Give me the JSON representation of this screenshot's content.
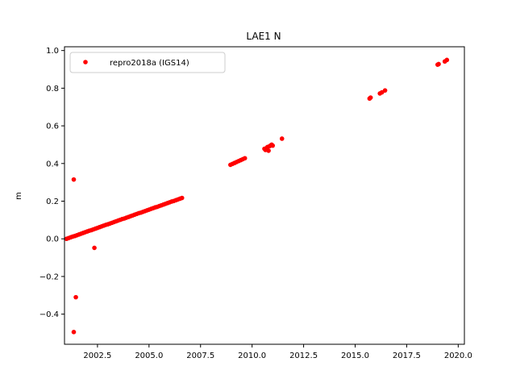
{
  "chart_data": {
    "type": "scatter",
    "title": "LAE1 N",
    "xlabel": "",
    "ylabel": "m",
    "xlim": [
      2000.9,
      2020.3
    ],
    "ylim": [
      -0.56,
      1.02
    ],
    "x_ticks": [
      2002.5,
      2005.0,
      2007.5,
      2010.0,
      2012.5,
      2015.0,
      2017.5,
      2020.0
    ],
    "x_tick_labels": [
      "2002.5",
      "2005.0",
      "2007.5",
      "2010.0",
      "2012.5",
      "2015.0",
      "2017.5",
      "2020.0"
    ],
    "y_ticks": [
      -0.4,
      -0.2,
      0.0,
      0.2,
      0.4,
      0.6,
      0.8,
      1.0
    ],
    "y_tick_labels": [
      "−0.4",
      "−0.2",
      "0.0",
      "0.2",
      "0.4",
      "0.6",
      "0.8",
      "1.0"
    ],
    "grid": false,
    "legend_position": "top-left",
    "series": [
      {
        "name": "repro2018a (IGS14)",
        "color": "#ff0000",
        "marker": "circle",
        "points": [
          [
            2001.0,
            0.0
          ],
          [
            2001.1,
            0.004
          ],
          [
            2001.2,
            0.008
          ],
          [
            2001.3,
            0.012
          ],
          [
            2001.4,
            0.015
          ],
          [
            2001.5,
            0.019
          ],
          [
            2001.6,
            0.023
          ],
          [
            2001.7,
            0.027
          ],
          [
            2001.8,
            0.031
          ],
          [
            2001.9,
            0.035
          ],
          [
            2002.0,
            0.039
          ],
          [
            2002.1,
            0.043
          ],
          [
            2002.2,
            0.046
          ],
          [
            2002.3,
            0.05
          ],
          [
            2002.4,
            0.054
          ],
          [
            2002.5,
            0.058
          ],
          [
            2002.6,
            0.062
          ],
          [
            2002.7,
            0.066
          ],
          [
            2002.8,
            0.07
          ],
          [
            2002.9,
            0.074
          ],
          [
            2003.0,
            0.077
          ],
          [
            2003.1,
            0.081
          ],
          [
            2003.2,
            0.085
          ],
          [
            2003.3,
            0.089
          ],
          [
            2003.4,
            0.093
          ],
          [
            2003.5,
            0.097
          ],
          [
            2003.6,
            0.101
          ],
          [
            2003.7,
            0.105
          ],
          [
            2003.8,
            0.108
          ],
          [
            2003.9,
            0.112
          ],
          [
            2004.0,
            0.116
          ],
          [
            2004.1,
            0.12
          ],
          [
            2004.2,
            0.124
          ],
          [
            2004.3,
            0.128
          ],
          [
            2004.4,
            0.132
          ],
          [
            2004.5,
            0.136
          ],
          [
            2004.6,
            0.139
          ],
          [
            2004.7,
            0.143
          ],
          [
            2004.8,
            0.147
          ],
          [
            2004.9,
            0.151
          ],
          [
            2005.0,
            0.155
          ],
          [
            2005.1,
            0.159
          ],
          [
            2005.2,
            0.163
          ],
          [
            2005.3,
            0.167
          ],
          [
            2005.4,
            0.17
          ],
          [
            2005.5,
            0.174
          ],
          [
            2005.6,
            0.178
          ],
          [
            2005.7,
            0.182
          ],
          [
            2005.8,
            0.186
          ],
          [
            2005.9,
            0.19
          ],
          [
            2006.0,
            0.194
          ],
          [
            2006.1,
            0.198
          ],
          [
            2006.2,
            0.201
          ],
          [
            2006.3,
            0.205
          ],
          [
            2006.4,
            0.209
          ],
          [
            2006.5,
            0.213
          ],
          [
            2006.6,
            0.217
          ],
          [
            2001.35,
            0.315
          ],
          [
            2002.35,
            -0.048
          ],
          [
            2001.45,
            -0.31
          ],
          [
            2001.35,
            -0.495
          ],
          [
            2008.95,
            0.393
          ],
          [
            2009.05,
            0.398
          ],
          [
            2009.15,
            0.403
          ],
          [
            2009.25,
            0.408
          ],
          [
            2009.35,
            0.413
          ],
          [
            2009.45,
            0.418
          ],
          [
            2009.55,
            0.423
          ],
          [
            2009.65,
            0.428
          ],
          [
            2010.6,
            0.478
          ],
          [
            2010.65,
            0.472
          ],
          [
            2010.7,
            0.482
          ],
          [
            2010.75,
            0.488
          ],
          [
            2010.8,
            0.468
          ],
          [
            2010.85,
            0.492
          ],
          [
            2010.9,
            0.496
          ],
          [
            2010.95,
            0.5
          ],
          [
            2011.0,
            0.495
          ],
          [
            2011.45,
            0.532
          ],
          [
            2015.7,
            0.745
          ],
          [
            2015.75,
            0.75
          ],
          [
            2016.2,
            0.772
          ],
          [
            2016.3,
            0.778
          ],
          [
            2016.45,
            0.788
          ],
          [
            2019.0,
            0.925
          ],
          [
            2019.05,
            0.928
          ],
          [
            2019.35,
            0.942
          ],
          [
            2019.45,
            0.95
          ]
        ]
      }
    ]
  }
}
